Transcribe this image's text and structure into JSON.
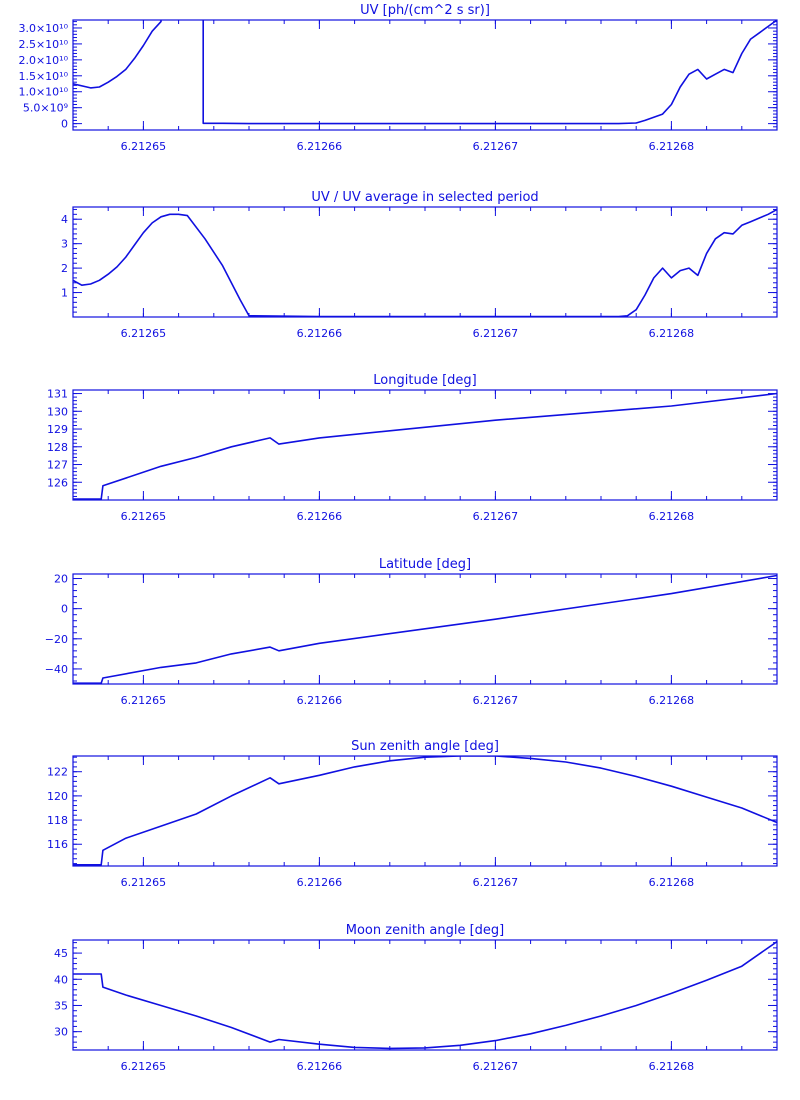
{
  "color": "#1010e0",
  "chart_data": [
    {
      "type": "line",
      "title": "UV [ph/(cm^2 s sr)]",
      "xlabel": "",
      "ylabel": "",
      "xlim": [
        6.212646,
        6.212686
      ],
      "ylim": [
        -2000000000.0,
        32500000000.0
      ],
      "x_ticks": [
        6.21265,
        6.21266,
        6.21267,
        6.21268
      ],
      "x_tick_labels": [
        "6.21265",
        "6.21266",
        "6.21267",
        "6.21268"
      ],
      "y_ticks": [
        0,
        5000000000.0,
        10000000000.0,
        15000000000.0,
        20000000000.0,
        25000000000.0,
        30000000000.0
      ],
      "y_tick_labels": [
        "0",
        "5.0×10⁹",
        "1.0×10¹⁰",
        "1.5×10¹⁰",
        "2.0×10¹⁰",
        "2.5×10¹⁰",
        "3.0×10¹⁰"
      ],
      "x": [
        6.212646,
        6.212647,
        6.2126475,
        6.212648,
        6.2126485,
        6.212649,
        6.2126495,
        6.21265,
        6.2126505,
        6.212651,
        6.212651,
        6.212653,
        6.2126534,
        6.2126534,
        6.2126545,
        6.212656,
        6.21266,
        6.21267,
        6.212677,
        6.212678,
        6.2126785,
        6.2126795,
        6.21268,
        6.2126805,
        6.212681,
        6.2126815,
        6.212682,
        6.2126825,
        6.212683,
        6.2126835,
        6.212684,
        6.2126845,
        6.212685,
        6.2126855,
        6.212686
      ],
      "y": [
        12500000000.0,
        11200000000.0,
        11500000000.0,
        13000000000.0,
        14800000000.0,
        17000000000.0,
        20500000000.0,
        24500000000.0,
        29000000000.0,
        32000000000.0,
        33000000000.0,
        33000000000.0,
        33000000000.0,
        100000000.0,
        100000000.0,
        0.0,
        0.0,
        0.0,
        0.0,
        200000000.0,
        1000000000.0,
        3000000000.0,
        6000000000.0,
        11500000000.0,
        15500000000.0,
        17000000000.0,
        14000000000.0,
        15500000000.0,
        17000000000.0,
        16000000000.0,
        22000000000.0,
        26500000000.0,
        28500000000.0,
        30500000000.0,
        32500000000.0
      ]
    },
    {
      "type": "line",
      "title": "UV / UV average in selected period",
      "xlabel": "",
      "ylabel": "",
      "xlim": [
        6.212646,
        6.212686
      ],
      "ylim": [
        0,
        4.5
      ],
      "x_ticks": [
        6.21265,
        6.21266,
        6.21267,
        6.21268
      ],
      "x_tick_labels": [
        "6.21265",
        "6.21266",
        "6.21267",
        "6.21268"
      ],
      "y_ticks": [
        1,
        2,
        3,
        4
      ],
      "y_tick_labels": [
        "1",
        "2",
        "3",
        "4"
      ],
      "x": [
        6.212646,
        6.2126465,
        6.212647,
        6.2126475,
        6.212648,
        6.2126485,
        6.212649,
        6.2126495,
        6.21265,
        6.2126505,
        6.212651,
        6.2126515,
        6.212652,
        6.2126525,
        6.2126535,
        6.2126545,
        6.2126555,
        6.212656,
        6.21266,
        6.21267,
        6.212677,
        6.2126775,
        6.212678,
        6.2126785,
        6.212679,
        6.2126795,
        6.21268,
        6.2126805,
        6.212681,
        6.2126815,
        6.212682,
        6.2126825,
        6.212683,
        6.2126835,
        6.212684,
        6.2126845,
        6.212685,
        6.2126855,
        6.212686
      ],
      "y": [
        1.5,
        1.3,
        1.35,
        1.5,
        1.75,
        2.05,
        2.45,
        2.95,
        3.45,
        3.85,
        4.1,
        4.2,
        4.2,
        4.15,
        3.2,
        2.1,
        0.7,
        0.05,
        0.02,
        0.02,
        0.02,
        0.05,
        0.3,
        0.9,
        1.6,
        2.0,
        1.6,
        1.9,
        2.0,
        1.7,
        2.6,
        3.2,
        3.45,
        3.4,
        3.75,
        3.9,
        4.05,
        4.2,
        4.4
      ]
    },
    {
      "type": "line",
      "title": "Longitude [deg]",
      "xlabel": "",
      "ylabel": "",
      "xlim": [
        6.212646,
        6.212686
      ],
      "ylim": [
        125,
        131.2
      ],
      "x_ticks": [
        6.21265,
        6.21266,
        6.21267,
        6.21268
      ],
      "x_tick_labels": [
        "6.21265",
        "6.21266",
        "6.21267",
        "6.21268"
      ],
      "y_ticks": [
        126,
        127,
        128,
        129,
        130,
        131
      ],
      "y_tick_labels": [
        "126",
        "127",
        "128",
        "129",
        "130",
        "131"
      ],
      "x": [
        6.212646,
        6.2126476,
        6.2126477,
        6.212651,
        6.212653,
        6.212655,
        6.2126572,
        6.2126577,
        6.21266,
        6.21267,
        6.21268,
        6.212686
      ],
      "y": [
        125.05,
        125.05,
        125.8,
        126.9,
        127.4,
        128.0,
        128.5,
        128.15,
        128.5,
        129.5,
        130.3,
        131.0
      ]
    },
    {
      "type": "line",
      "title": "Latitude [deg]",
      "xlabel": "",
      "ylabel": "",
      "xlim": [
        6.212646,
        6.212686
      ],
      "ylim": [
        -50,
        23
      ],
      "x_ticks": [
        6.21265,
        6.21266,
        6.21267,
        6.21268
      ],
      "x_tick_labels": [
        "6.21265",
        "6.21266",
        "6.21267",
        "6.21268"
      ],
      "y_ticks": [
        -40,
        -20,
        0,
        20
      ],
      "y_tick_labels": [
        "−40",
        "−20",
        "0",
        "20"
      ],
      "x": [
        6.212646,
        6.2126476,
        6.2126477,
        6.212651,
        6.212653,
        6.212655,
        6.2126572,
        6.2126577,
        6.21266,
        6.21267,
        6.21268,
        6.212686
      ],
      "y": [
        -49.5,
        -49.5,
        -46,
        -39,
        -36,
        -30,
        -25.5,
        -28,
        -23,
        -7,
        10,
        22
      ]
    },
    {
      "type": "line",
      "title": "Sun zenith angle [deg]",
      "xlabel": "",
      "ylabel": "",
      "xlim": [
        6.212646,
        6.212686
      ],
      "ylim": [
        114.2,
        123.3
      ],
      "x_ticks": [
        6.21265,
        6.21266,
        6.21267,
        6.21268
      ],
      "x_tick_labels": [
        "6.21265",
        "6.21266",
        "6.21267",
        "6.21268"
      ],
      "y_ticks": [
        116,
        118,
        120,
        122
      ],
      "y_tick_labels": [
        "116",
        "118",
        "120",
        "122"
      ],
      "x": [
        6.212646,
        6.2126476,
        6.2126477,
        6.212649,
        6.212651,
        6.212653,
        6.212655,
        6.2126572,
        6.2126577,
        6.21266,
        6.212662,
        6.212664,
        6.212666,
        6.212668,
        6.21267,
        6.212672,
        6.212674,
        6.212676,
        6.212678,
        6.21268,
        6.212682,
        6.212684,
        6.212686
      ],
      "y": [
        114.3,
        114.3,
        115.5,
        116.5,
        117.5,
        118.5,
        120.0,
        121.5,
        121.0,
        121.7,
        122.4,
        122.9,
        123.2,
        123.3,
        123.3,
        123.1,
        122.8,
        122.3,
        121.6,
        120.8,
        119.9,
        119.0,
        117.8
      ]
    },
    {
      "type": "line",
      "title": "Moon zenith angle [deg]",
      "xlabel": "",
      "ylabel": "",
      "xlim": [
        6.212646,
        6.212686
      ],
      "ylim": [
        26.5,
        47.5
      ],
      "x_ticks": [
        6.21265,
        6.21266,
        6.21267,
        6.21268
      ],
      "x_tick_labels": [
        "6.21265",
        "6.21266",
        "6.21267",
        "6.21268"
      ],
      "y_ticks": [
        30,
        35,
        40,
        45
      ],
      "y_tick_labels": [
        "30",
        "35",
        "40",
        "45"
      ],
      "x": [
        6.212646,
        6.2126476,
        6.2126477,
        6.212649,
        6.212651,
        6.212653,
        6.212655,
        6.2126572,
        6.2126577,
        6.21266,
        6.212662,
        6.212664,
        6.212666,
        6.212668,
        6.21267,
        6.212672,
        6.212674,
        6.212676,
        6.212678,
        6.21268,
        6.212682,
        6.212684,
        6.212686
      ],
      "y": [
        41.0,
        41.0,
        38.5,
        37.0,
        35.0,
        33.0,
        30.8,
        28.0,
        28.5,
        27.6,
        27.0,
        26.8,
        26.9,
        27.4,
        28.3,
        29.6,
        31.2,
        33.0,
        35.0,
        37.3,
        39.8,
        42.5,
        47.2
      ]
    }
  ]
}
